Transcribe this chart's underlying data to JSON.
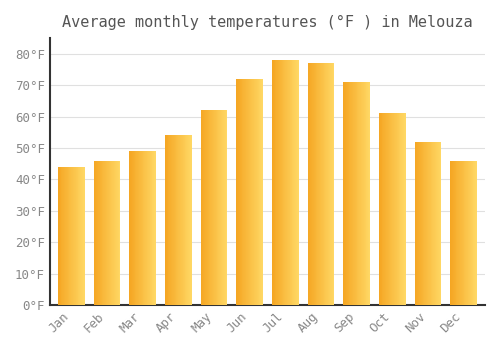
{
  "title": "Average monthly temperatures (°F ) in Melouza",
  "months": [
    "Jan",
    "Feb",
    "Mar",
    "Apr",
    "May",
    "Jun",
    "Jul",
    "Aug",
    "Sep",
    "Oct",
    "Nov",
    "Dec"
  ],
  "values": [
    44,
    46,
    49,
    54,
    62,
    72,
    78,
    77,
    71,
    61,
    52,
    46
  ],
  "bar_color_left": "#F5A623",
  "bar_color_right": "#FFD966",
  "background_color": "#FFFFFF",
  "plot_bg_color": "#FFFFFF",
  "grid_color": "#E0E0E0",
  "left_spine_color": "#333333",
  "bottom_spine_color": "#333333",
  "ylim": [
    0,
    85
  ],
  "yticks": [
    0,
    10,
    20,
    30,
    40,
    50,
    60,
    70,
    80
  ],
  "ytick_labels": [
    "0°F",
    "10°F",
    "20°F",
    "30°F",
    "40°F",
    "50°F",
    "60°F",
    "70°F",
    "80°F"
  ],
  "tick_color": "#888888",
  "title_fontsize": 11,
  "tick_fontsize": 9,
  "bar_width": 0.75
}
